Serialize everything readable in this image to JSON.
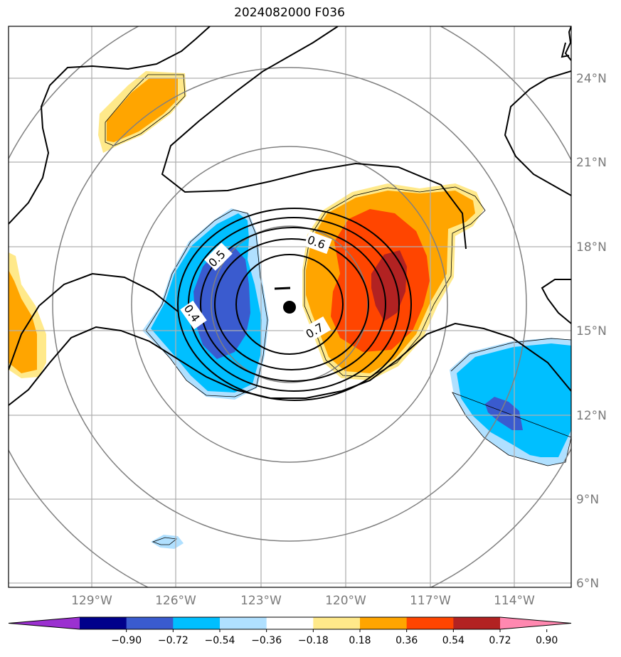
{
  "title": "2024082000 F036",
  "lat_labels": [
    "24°N",
    "21°N",
    "18°N",
    "15°N",
    "12°N",
    "9°N",
    "6°N"
  ],
  "lon_labels": [
    "129°W",
    "126°W",
    "123°W",
    "120°W",
    "117°W",
    "114°W"
  ],
  "contour_labels": [
    "0.6",
    "0.5",
    "0.4",
    "0.7"
  ],
  "colorbar": {
    "ticks": [
      "−0.90",
      "−0.72",
      "−0.54",
      "−0.36",
      "−0.18",
      "0.18",
      "0.36",
      "0.54",
      "0.72",
      "0.90"
    ],
    "colors": [
      "#9b30d0",
      "#00008b",
      "#3a5bcf",
      "#00bfff",
      "#b0e0ff",
      "#ffffff",
      "#ffe98a",
      "#ffa500",
      "#ff4500",
      "#b22222",
      "#ff88b0"
    ]
  },
  "colors": {
    "grid": "#b0b0b0",
    "range_rings": "#808080",
    "contour": "#000000",
    "coastline": "#000000"
  }
}
